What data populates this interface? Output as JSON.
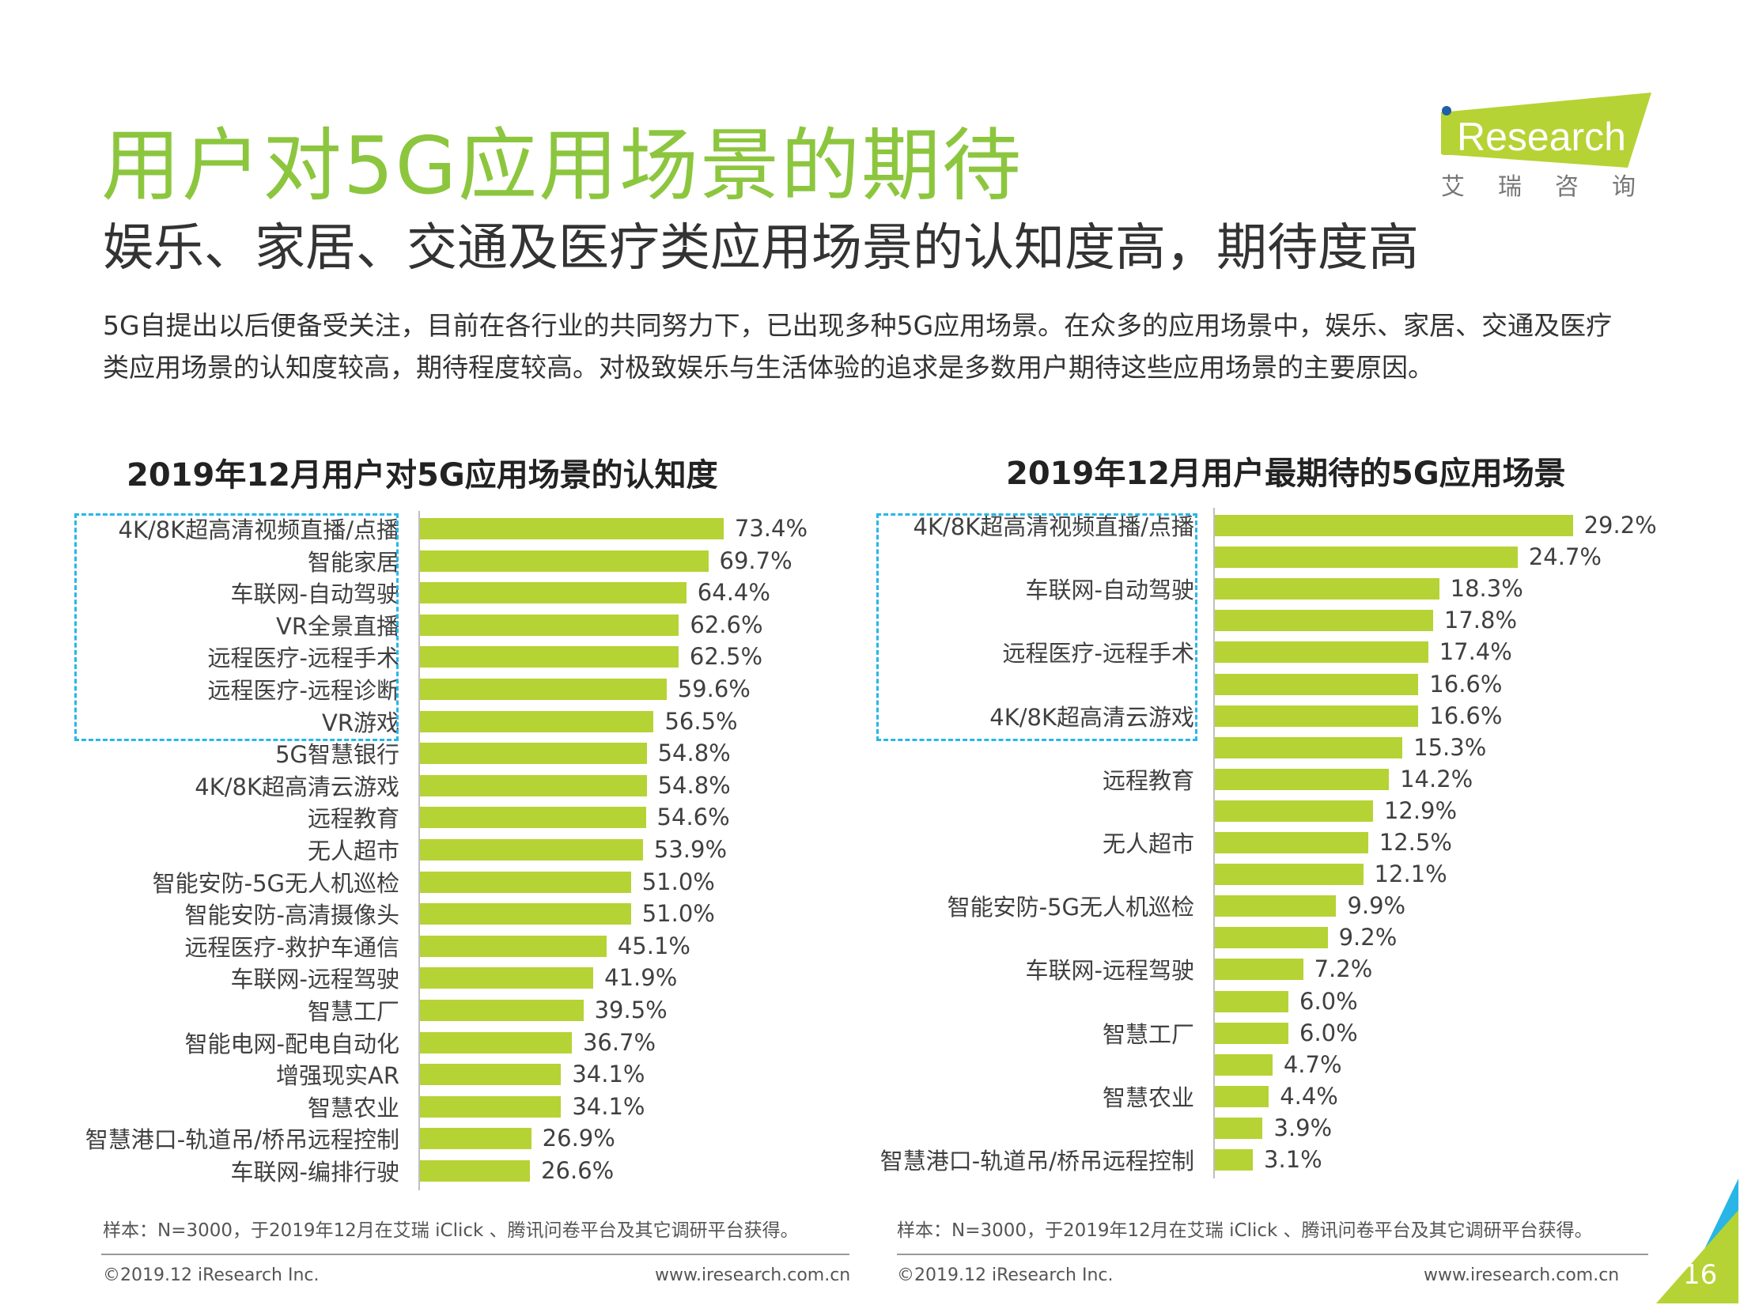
{
  "header": {
    "title": "用户对5G应用场景的期待",
    "subtitle": "娱乐、家居、交通及医疗类应用场景的认知度高，期待度高",
    "description": "5G自提出以后便备受关注，目前在各行业的共同努力下，已出现多种5G应用场景。在众多的应用场景中，娱乐、家居、交通及医疗类应用场景的认知度较高，期待程度较高。对极致娱乐与生活体验的追求是多数用户期待这些应用场景的主要原因。"
  },
  "logo": {
    "text": "iResearch",
    "sub": "艾 瑞 咨 询",
    "colors": {
      "green": "#b5d334",
      "blue": "#1f5fa8"
    }
  },
  "colors": {
    "bar": "#b5d334",
    "title": "#8cc63e",
    "highlight_box": "#29b6e6"
  },
  "chart_data": [
    {
      "type": "bar",
      "orientation": "horizontal",
      "title": "2019年12月用户对5G应用场景的认知度",
      "unit": "%",
      "categories": [
        "4K/8K超高清视频直播/点播",
        "智能家居",
        "车联网-自动驾驶",
        "VR全景直播",
        "远程医疗-远程手术",
        "远程医疗-远程诊断",
        "VR游戏",
        "5G智慧银行",
        "4K/8K超高清云游戏",
        "远程教育",
        "无人超市",
        "智能安防-5G无人机巡检",
        "智能安防-高清摄像头",
        "远程医疗-救护车通信",
        "车联网-远程驾驶",
        "智慧工厂",
        "智能电网-配电自动化",
        "增强现实AR",
        "智慧农业",
        "智慧港口-轨道吊/桥吊远程控制",
        "车联网-编排行驶"
      ],
      "values": [
        73.4,
        69.7,
        64.4,
        62.6,
        62.5,
        59.6,
        56.5,
        54.8,
        54.8,
        54.6,
        53.9,
        51.0,
        51.0,
        45.1,
        41.9,
        39.5,
        36.7,
        34.1,
        34.1,
        26.9,
        26.6
      ],
      "value_labels": [
        "73.4%",
        "69.7%",
        "64.4%",
        "62.6%",
        "62.5%",
        "59.6%",
        "56.5%",
        "54.8%",
        "54.8%",
        "54.6%",
        "53.9%",
        "51.0%",
        "51.0%",
        "45.1%",
        "41.9%",
        "39.5%",
        "36.7%",
        "34.1%",
        "34.1%",
        "26.9%",
        "26.6%"
      ],
      "highlighted_top": 7
    },
    {
      "type": "bar",
      "orientation": "horizontal",
      "title": "2019年12月用户最期待的5G应用场景",
      "unit": "%",
      "categories": [
        "4K/8K超高清视频直播/点播",
        "",
        "车联网-自动驾驶",
        "",
        "远程医疗-远程手术",
        "",
        "4K/8K超高清云游戏",
        "",
        "远程教育",
        "",
        "无人超市",
        "",
        "智能安防-5G无人机巡检",
        "",
        "车联网-远程驾驶",
        "",
        "智慧工厂",
        "",
        "智慧农业",
        "",
        "智慧港口-轨道吊/桥吊远程控制"
      ],
      "values": [
        29.2,
        24.7,
        18.3,
        17.8,
        17.4,
        16.6,
        16.6,
        15.3,
        14.2,
        12.9,
        12.5,
        12.1,
        9.9,
        9.2,
        7.2,
        6.0,
        6.0,
        4.7,
        4.4,
        3.9,
        3.1
      ],
      "value_labels": [
        "29.2%",
        "24.7%",
        "18.3%",
        "17.8%",
        "17.4%",
        "16.6%",
        "16.6%",
        "15.3%",
        "14.2%",
        "12.9%",
        "12.5%",
        "12.1%",
        "9.9%",
        "9.2%",
        "7.2%",
        "6.0%",
        "6.0%",
        "4.7%",
        "4.4%",
        "3.9%",
        "3.1%"
      ],
      "highlighted_top": 7
    }
  ],
  "footer": {
    "left_note": "样本：N=3000，于2019年12月在艾瑞 iClick 、腾讯问卷平台及其它调研平台获得。",
    "right_note": "样本：N=3000，于2019年12月在艾瑞 iClick 、腾讯问卷平台及其它调研平台获得。",
    "copyright_left": "©2019.12 iResearch Inc.",
    "url_left": "www.iresearch.com.cn",
    "copyright_right": "©2019.12  iResearch Inc.",
    "url_right": "www.iresearch.com.cn",
    "page": "16"
  }
}
